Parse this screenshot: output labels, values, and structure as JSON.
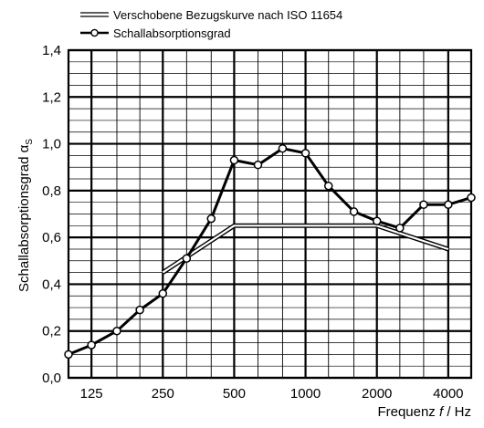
{
  "chart_data": {
    "type": "line",
    "title": "",
    "xlabel": "Frequenz f / Hz",
    "xlabel_parts": [
      "Frequenz ",
      "f",
      " / Hz"
    ],
    "ylabel": "Schallabsorptionsgrad αS",
    "ylabel_parts": [
      "Schallabsorptionsgrad α",
      "S"
    ],
    "x_scale": "log",
    "x_ticks": [
      125,
      250,
      500,
      1000,
      2000,
      4000
    ],
    "x_tick_labels": [
      "125",
      "250",
      "500",
      "1000",
      "2000",
      "4000"
    ],
    "xlim": [
      100,
      5000
    ],
    "ylim": [
      0,
      1.4
    ],
    "y_ticks": [
      0,
      0.2,
      0.4,
      0.6,
      0.8,
      1.0,
      1.2,
      1.4
    ],
    "y_tick_labels": [
      "0,0",
      "0,2",
      "0,4",
      "0,6",
      "0,8",
      "1,0",
      "1,2",
      "1,4"
    ],
    "grid": true,
    "legend_position": "top-left, above plot",
    "series": [
      {
        "name": "Verschobene Bezugskurve nach ISO 11654",
        "style": "double-line",
        "x": [
          250,
          500,
          2000,
          4000
        ],
        "y": [
          0.45,
          0.65,
          0.65,
          0.55
        ]
      },
      {
        "name": "Schallabsorptionsgrad",
        "style": "line-with-open-circles",
        "x": [
          100,
          125,
          160,
          200,
          250,
          315,
          400,
          500,
          630,
          800,
          1000,
          1250,
          1600,
          2000,
          2500,
          3150,
          4000,
          5000
        ],
        "y": [
          0.1,
          0.14,
          0.2,
          0.29,
          0.36,
          0.51,
          0.68,
          0.93,
          0.91,
          0.98,
          0.96,
          0.82,
          0.71,
          0.67,
          0.64,
          0.74,
          0.74,
          0.77
        ]
      }
    ]
  }
}
